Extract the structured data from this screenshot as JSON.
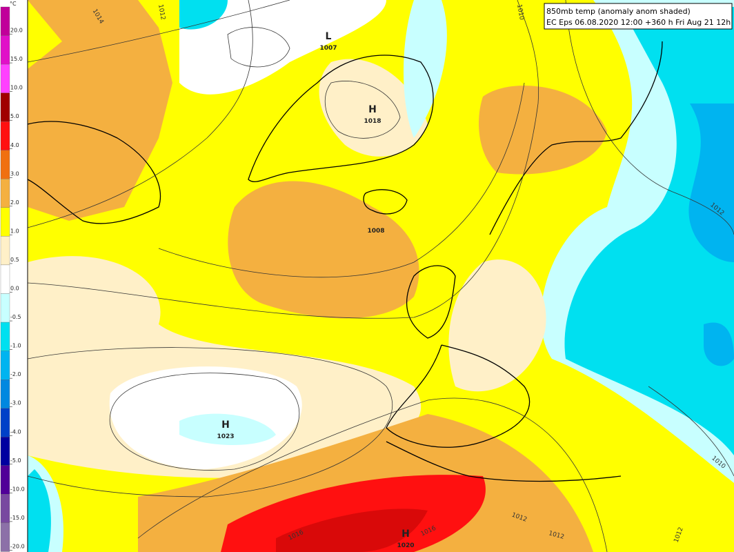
{
  "header": {
    "line1": "850mb temp (anomaly anom shaded)",
    "line2": "EC Eps 06.08.2020 12:00 +360 h Fri Aug 21 12h"
  },
  "colorbar": {
    "unit": "°C",
    "labels": [
      "20.0",
      "15.0",
      "10.0",
      "5.0",
      "4.0",
      "3.0",
      "2.0",
      "1.0",
      "0.5",
      "0.0",
      "-0.5",
      "-1.0",
      "-2.0",
      "-3.0",
      "-4.0",
      "-5.0",
      "-10.0",
      "-15.0",
      "-20.0"
    ],
    "colors": [
      "#c0009a",
      "#e010c8",
      "#ff40ff",
      "#a00000",
      "#ff1010",
      "#f07010",
      "#f4b040",
      "#ffff00",
      "#fff0c8",
      "#ffffff",
      "#c8ffff",
      "#00e0f0",
      "#00b4f0",
      "#0088e0",
      "#0040c8",
      "#0000a0",
      "#500098",
      "#7848a0",
      "#8c70a8"
    ]
  },
  "pressure_centers": [
    {
      "letter": "L",
      "value": "1007"
    },
    {
      "letter": "H",
      "value": "1018"
    },
    {
      "value": "1008"
    },
    {
      "letter": "H",
      "value": "1023"
    },
    {
      "letter": "H",
      "value": "1020"
    }
  ],
  "isobar_labels": [
    "1014",
    "1012",
    "1010",
    "1012",
    "1010",
    "1012",
    "1012",
    "1016",
    "1016",
    "1012"
  ]
}
